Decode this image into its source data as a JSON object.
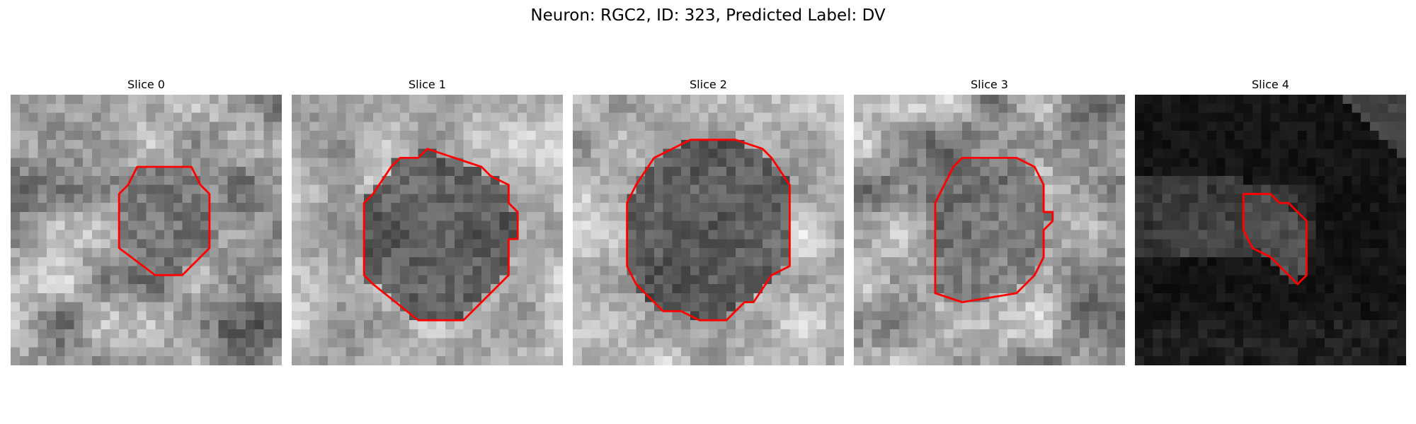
{
  "figure": {
    "title": "Neuron: RGC2, ID: 323, Predicted Label: DV"
  },
  "panels": [
    {
      "title": "Slice 0",
      "seed": 11,
      "style": "mixed"
    },
    {
      "title": "Slice 1",
      "seed": 29,
      "style": "bright-ring"
    },
    {
      "title": "Slice 2",
      "seed": 47,
      "style": "bright-ring"
    },
    {
      "title": "Slice 3",
      "seed": 73,
      "style": "mixed"
    },
    {
      "title": "Slice 4",
      "seed": 97,
      "style": "dark"
    }
  ],
  "colors": {
    "contour": "#ff0000",
    "background": "#ffffff",
    "colormap": "gray"
  }
}
